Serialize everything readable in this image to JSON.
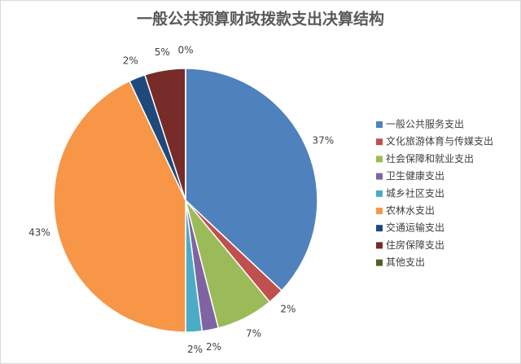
{
  "chart_data": {
    "type": "pie",
    "title": "一般公共预算财政拨款支出决算结构",
    "categories": [
      "一般公共服务支出",
      "文化旅游体育与传媒支出",
      "社会保障和就业支出",
      "卫生健康支出",
      "城乡社区支出",
      "农林水支出",
      "交通运输支出",
      "住房保障支出",
      "其他支出"
    ],
    "values": [
      37,
      2,
      7,
      2,
      2,
      43,
      2,
      5,
      0
    ],
    "value_labels": [
      "37%",
      "2%",
      "7%",
      "2%",
      "2%",
      "43%",
      "2%",
      "5%",
      "0%"
    ],
    "colors": [
      "#4f81bd",
      "#c0504d",
      "#9bbb59",
      "#8064a2",
      "#4bacc6",
      "#f79646",
      "#1f497d",
      "#772c2a",
      "#4f6228"
    ],
    "legend": "right"
  }
}
